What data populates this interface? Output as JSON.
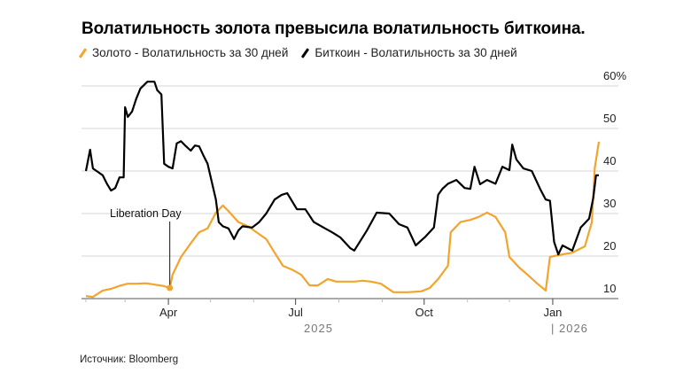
{
  "chart_data": {
    "type": "line",
    "title": "Волатильность золота превысила волатильность биткоина.",
    "source": "Источник: Bloomberg",
    "y_axis": {
      "position": "right",
      "range": [
        10,
        60
      ],
      "ticks": [
        10,
        20,
        30,
        40,
        50,
        60
      ],
      "tick_labels": [
        "10",
        "20",
        "30",
        "40",
        "50",
        "60%"
      ]
    },
    "x_axis": {
      "range": [
        "2025-02-01",
        "2026-02-03"
      ],
      "ticks": [
        {
          "date": "2025-04-01",
          "label": "Apr"
        },
        {
          "date": "2025-07-01",
          "label": "Jul"
        },
        {
          "date": "2025-10-01",
          "label": "Oct"
        },
        {
          "date": "2026-01-01",
          "label": "Jan"
        }
      ],
      "year_labels": [
        "2025",
        "| 2026"
      ]
    },
    "grid": true,
    "legend_placement": "top-left",
    "annotation": {
      "label": "Liberation Day",
      "date": "2025-04-02",
      "value": 12.5
    },
    "series": [
      {
        "name": "Золото - Волатильность за 30 дней",
        "color": "#f2a42c",
        "points": [
          [
            "2025-02-01",
            10.6
          ],
          [
            "2025-02-06",
            10.4
          ],
          [
            "2025-02-13",
            11.9
          ],
          [
            "2025-02-19",
            12.3
          ],
          [
            "2025-02-25",
            13
          ],
          [
            "2025-03-03",
            13.5
          ],
          [
            "2025-03-09",
            13.5
          ],
          [
            "2025-03-16",
            13.6
          ],
          [
            "2025-03-22",
            13.3
          ],
          [
            "2025-03-28",
            13
          ],
          [
            "2025-04-02",
            12.5
          ],
          [
            "2025-04-04",
            15.6
          ],
          [
            "2025-04-10",
            19.8
          ],
          [
            "2025-04-17",
            23
          ],
          [
            "2025-04-23",
            25.6
          ],
          [
            "2025-04-29",
            26.5
          ],
          [
            "2025-05-05",
            30.2
          ],
          [
            "2025-05-10",
            31.9
          ],
          [
            "2025-05-15",
            30.2
          ],
          [
            "2025-05-21",
            28
          ],
          [
            "2025-05-28",
            27
          ],
          [
            "2025-06-03",
            25.6
          ],
          [
            "2025-06-10",
            24
          ],
          [
            "2025-06-16",
            20.8
          ],
          [
            "2025-06-22",
            17.7
          ],
          [
            "2025-06-29",
            16.7
          ],
          [
            "2025-07-05",
            15.6
          ],
          [
            "2025-07-11",
            13.1
          ],
          [
            "2025-07-17",
            13.1
          ],
          [
            "2025-07-24",
            14.6
          ],
          [
            "2025-07-30",
            14
          ],
          [
            "2025-08-05",
            14
          ],
          [
            "2025-08-12",
            14
          ],
          [
            "2025-08-18",
            14.2
          ],
          [
            "2025-08-24",
            14
          ],
          [
            "2025-08-31",
            13.5
          ],
          [
            "2025-09-09",
            11.5
          ],
          [
            "2025-09-19",
            11.5
          ],
          [
            "2025-09-29",
            11.7
          ],
          [
            "2025-10-05",
            12.5
          ],
          [
            "2025-10-11",
            14.6
          ],
          [
            "2025-10-18",
            17.7
          ],
          [
            "2025-10-20",
            25.6
          ],
          [
            "2025-10-27",
            28
          ],
          [
            "2025-11-03",
            28.5
          ],
          [
            "2025-11-09",
            29.2
          ],
          [
            "2025-11-15",
            30.2
          ],
          [
            "2025-11-21",
            29.2
          ],
          [
            "2025-11-28",
            25.6
          ],
          [
            "2025-12-01",
            19.8
          ],
          [
            "2025-12-08",
            17.3
          ],
          [
            "2025-12-14",
            15.6
          ],
          [
            "2025-12-21",
            13.5
          ],
          [
            "2025-12-27",
            11.9
          ],
          [
            "2025-12-30",
            19.8
          ],
          [
            "2026-01-05",
            20.2
          ],
          [
            "2026-01-15",
            20.8
          ],
          [
            "2026-01-24",
            22.3
          ],
          [
            "2026-01-29",
            28
          ],
          [
            "2026-01-31",
            40.6
          ],
          [
            "2026-02-03",
            46.9
          ]
        ]
      },
      {
        "name": "Биткоин - Волатильность за 30 дней",
        "color": "#000000",
        "points": [
          [
            "2025-02-01",
            40
          ],
          [
            "2025-02-04",
            45
          ],
          [
            "2025-02-06",
            40.6
          ],
          [
            "2025-02-13",
            39
          ],
          [
            "2025-02-16",
            37
          ],
          [
            "2025-02-19",
            35.4
          ],
          [
            "2025-02-22",
            36
          ],
          [
            "2025-02-25",
            38.5
          ],
          [
            "2025-02-28",
            38.5
          ],
          [
            "2025-03-01",
            55
          ],
          [
            "2025-03-03",
            52.7
          ],
          [
            "2025-03-06",
            54
          ],
          [
            "2025-03-09",
            57
          ],
          [
            "2025-03-12",
            59.4
          ],
          [
            "2025-03-17",
            61
          ],
          [
            "2025-03-22",
            61
          ],
          [
            "2025-03-24",
            59
          ],
          [
            "2025-03-27",
            58
          ],
          [
            "2025-03-29",
            41.7
          ],
          [
            "2025-04-01",
            41
          ],
          [
            "2025-04-04",
            40.6
          ],
          [
            "2025-04-07",
            46.5
          ],
          [
            "2025-04-10",
            47
          ],
          [
            "2025-04-13",
            46
          ],
          [
            "2025-04-17",
            44.8
          ],
          [
            "2025-04-20",
            46
          ],
          [
            "2025-04-23",
            45.8
          ],
          [
            "2025-04-26",
            43.7
          ],
          [
            "2025-04-29",
            41.7
          ],
          [
            "2025-05-02",
            37.5
          ],
          [
            "2025-05-05",
            33.3
          ],
          [
            "2025-05-07",
            28
          ],
          [
            "2025-05-10",
            27
          ],
          [
            "2025-05-14",
            26.5
          ],
          [
            "2025-05-18",
            24
          ],
          [
            "2025-05-21",
            26
          ],
          [
            "2025-05-24",
            27
          ],
          [
            "2025-05-31",
            26.7
          ],
          [
            "2025-06-05",
            28
          ],
          [
            "2025-06-10",
            30
          ],
          [
            "2025-06-16",
            33.3
          ],
          [
            "2025-06-21",
            34.4
          ],
          [
            "2025-06-25",
            34.8
          ],
          [
            "2025-07-02",
            31
          ],
          [
            "2025-07-08",
            31
          ],
          [
            "2025-07-14",
            28
          ],
          [
            "2025-07-21",
            26.7
          ],
          [
            "2025-07-27",
            25.6
          ],
          [
            "2025-08-02",
            24.4
          ],
          [
            "2025-08-09",
            21.9
          ],
          [
            "2025-08-12",
            21.3
          ],
          [
            "2025-08-21",
            26
          ],
          [
            "2025-08-28",
            30.2
          ],
          [
            "2025-09-06",
            30
          ],
          [
            "2025-09-13",
            27.5
          ],
          [
            "2025-09-19",
            26.7
          ],
          [
            "2025-09-25",
            22.5
          ],
          [
            "2025-10-02",
            24.6
          ],
          [
            "2025-10-08",
            26.7
          ],
          [
            "2025-10-11",
            34.4
          ],
          [
            "2025-10-14",
            35.8
          ],
          [
            "2025-10-18",
            37
          ],
          [
            "2025-10-24",
            37.9
          ],
          [
            "2025-10-30",
            36
          ],
          [
            "2025-11-03",
            35.8
          ],
          [
            "2025-11-06",
            41
          ],
          [
            "2025-11-10",
            36.9
          ],
          [
            "2025-11-15",
            37.9
          ],
          [
            "2025-11-21",
            37
          ],
          [
            "2025-11-26",
            41
          ],
          [
            "2025-12-01",
            40.2
          ],
          [
            "2025-12-03",
            46.2
          ],
          [
            "2025-12-06",
            42.7
          ],
          [
            "2025-12-11",
            40.6
          ],
          [
            "2025-12-17",
            40
          ],
          [
            "2025-12-23",
            35.8
          ],
          [
            "2025-12-27",
            33.3
          ],
          [
            "2025-12-30",
            33
          ],
          [
            "2026-01-02",
            23.3
          ],
          [
            "2026-01-05",
            20.4
          ],
          [
            "2026-01-08",
            22.5
          ],
          [
            "2026-01-15",
            21.3
          ],
          [
            "2026-01-21",
            26.7
          ],
          [
            "2026-01-27",
            28.8
          ],
          [
            "2026-01-30",
            33.7
          ],
          [
            "2026-02-01",
            39
          ],
          [
            "2026-02-03",
            39
          ]
        ]
      }
    ]
  }
}
